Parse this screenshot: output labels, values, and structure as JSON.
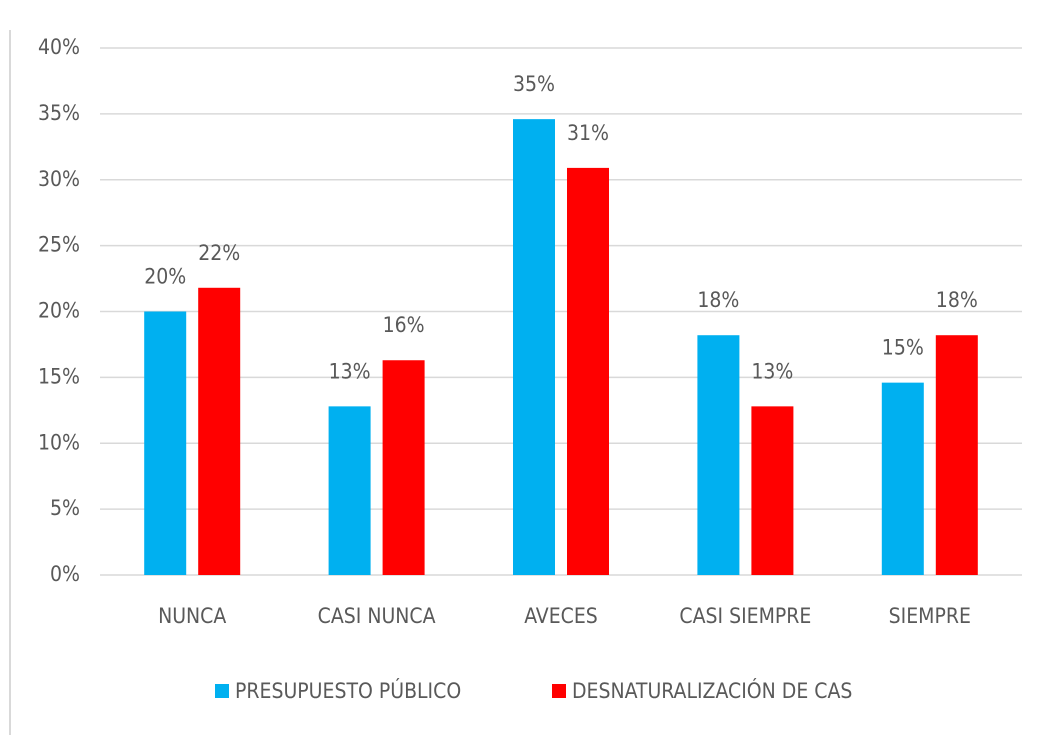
{
  "chart_data": {
    "type": "bar",
    "categories": [
      "NUNCA",
      "CASI NUNCA",
      "AVECES",
      "CASI SIEMPRE",
      "SIEMPRE"
    ],
    "series": [
      {
        "name": "PRESUPUESTO PÚBLICO",
        "color": "#00b0f0",
        "values": [
          20,
          12.8,
          34.6,
          18.2,
          14.6
        ],
        "value_labels": [
          "20%",
          "13%",
          "35%",
          "18%",
          "15%"
        ]
      },
      {
        "name": "DESNATURALIZACIÓN DE CAS",
        "color": "#ff0000",
        "values": [
          21.8,
          16.3,
          30.9,
          12.8,
          18.2
        ],
        "value_labels": [
          "22%",
          "16%",
          "31%",
          "13%",
          "18%"
        ]
      }
    ],
    "ylim": [
      0,
      40
    ],
    "yticks": [
      {
        "value": 0,
        "label": "0%"
      },
      {
        "value": 5,
        "label": "5%"
      },
      {
        "value": 10,
        "label": "10%"
      },
      {
        "value": 15,
        "label": "15%"
      },
      {
        "value": 20,
        "label": "20%"
      },
      {
        "value": 25,
        "label": "25%"
      },
      {
        "value": 30,
        "label": "30%"
      },
      {
        "value": 35,
        "label": "35%"
      },
      {
        "value": 40,
        "label": "40%"
      }
    ],
    "grid": true,
    "legend": "bottom"
  }
}
